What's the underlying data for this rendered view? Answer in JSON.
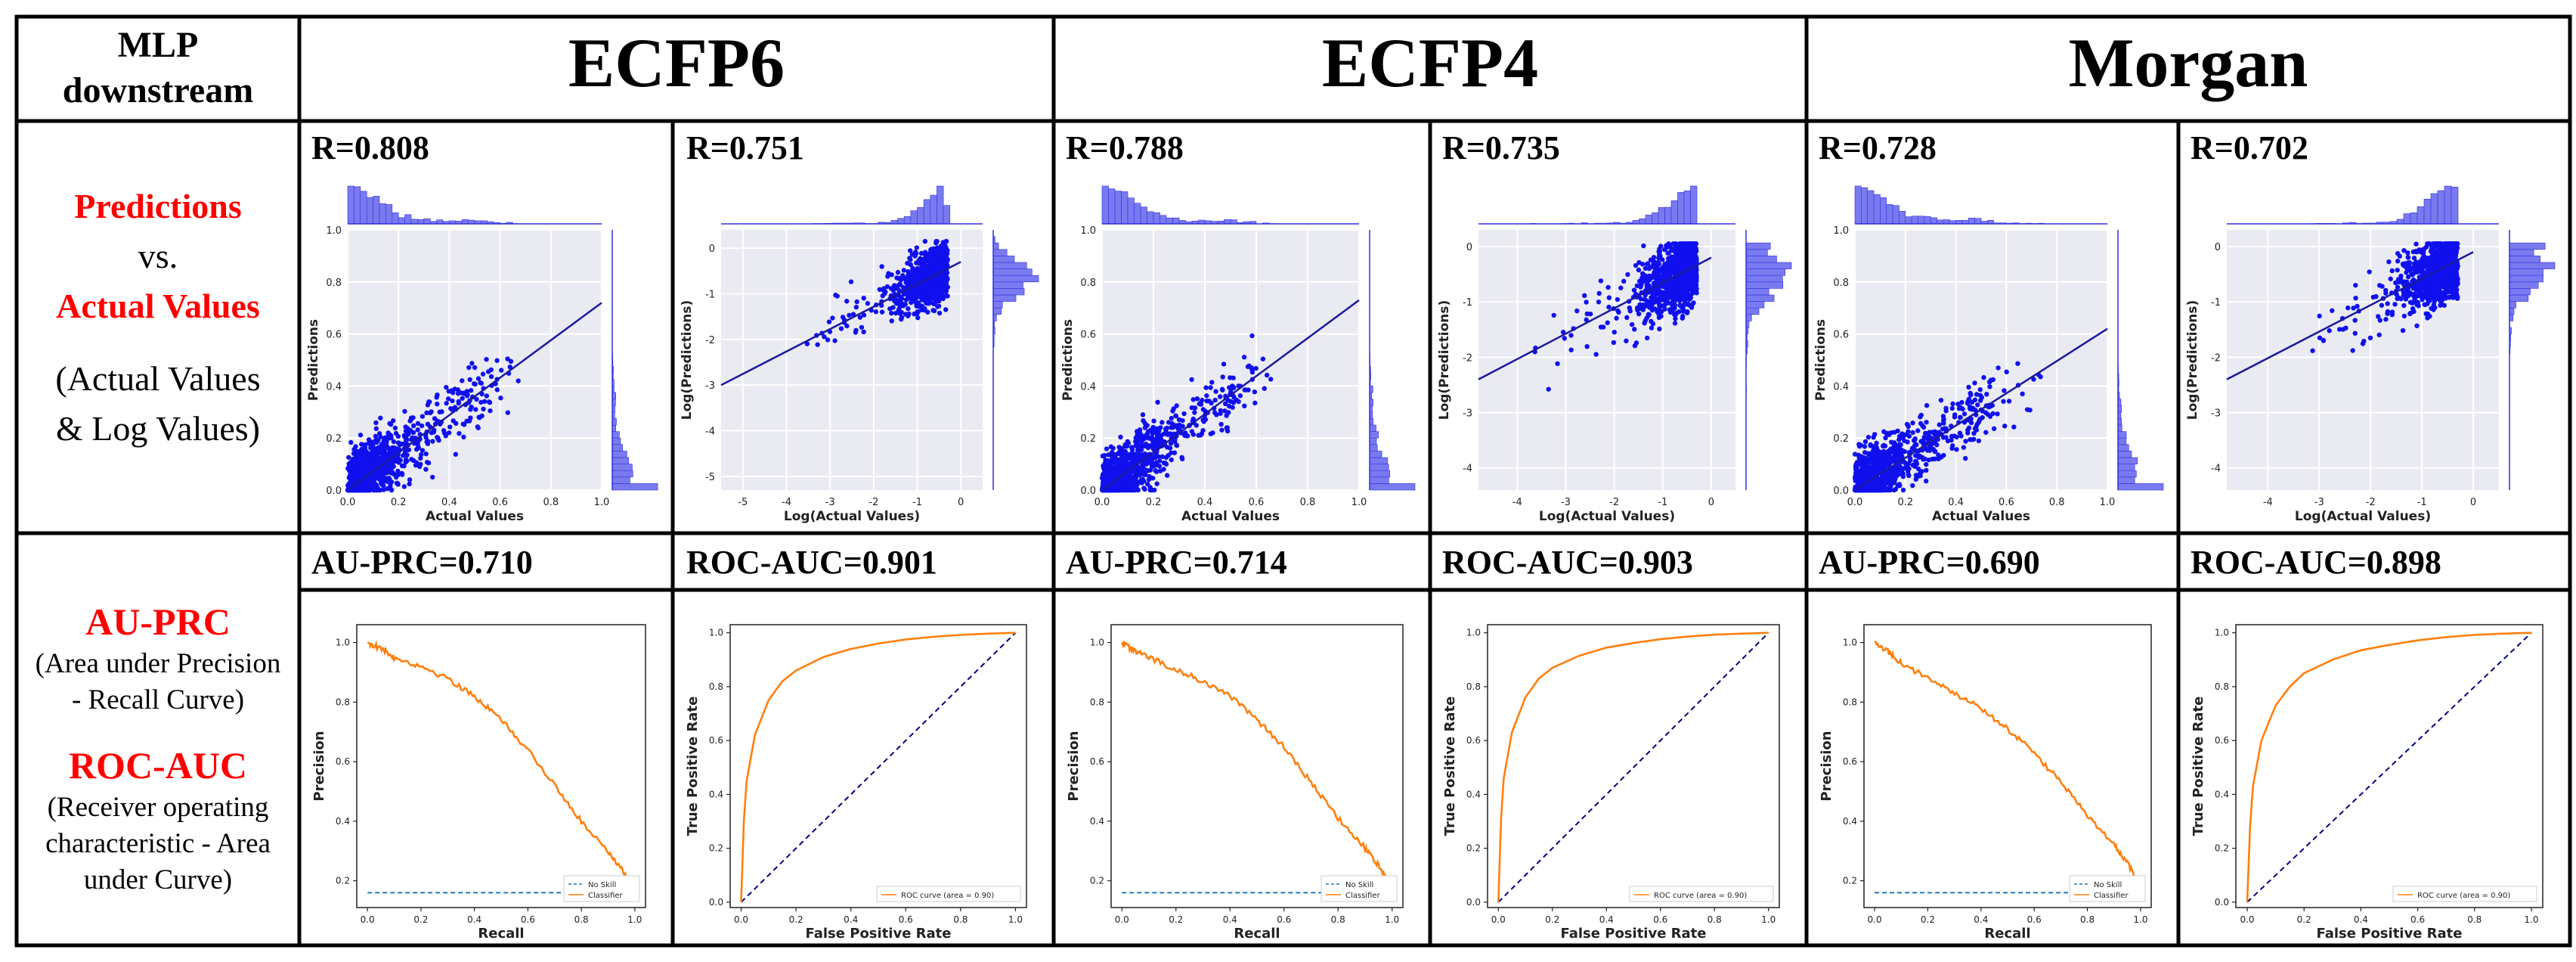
{
  "corner": {
    "line1": "MLP",
    "line2": "downstream"
  },
  "headers": [
    "ECFP6",
    "ECFP4",
    "Morgan"
  ],
  "row1_side": {
    "l1": "Predictions",
    "l2": "vs.",
    "l3": "Actual Values",
    "l4": "(Actual Values",
    "l5": "& Log Values)"
  },
  "row2_side": {
    "l1": "AU-PRC",
    "l2": "(Area under Precision",
    "l3": "- Recall Curve)",
    "l4": "ROC-AUC",
    "l5": "(Receiver operating",
    "l6": "characteristic - Area",
    "l7": "under Curve)"
  },
  "r_labels": [
    "R=0.808",
    "R=0.751",
    "R=0.788",
    "R=0.735",
    "R=0.728",
    "R=0.702"
  ],
  "metric_labels": [
    "AU-PRC=0.710",
    "ROC-AUC=0.901",
    "AU-PRC=0.714",
    "ROC-AUC=0.903",
    "AU-PRC=0.690",
    "ROC-AUC=0.898"
  ],
  "colors": {
    "scatter": "#1010ee",
    "pr": "#ff7f0e",
    "noskill": "#1f77b4",
    "diag": "#000080",
    "plotbg": "#eaeaf2"
  },
  "chart_data": [
    {
      "type": "scatter",
      "panel": "ECFP6-linear",
      "xlabel": "Actual Values",
      "ylabel": "Predictions",
      "xlim": [
        0,
        1
      ],
      "ylim": [
        0,
        1
      ],
      "xticks": [
        "0.0",
        "0.2",
        "0.4",
        "0.6",
        "0.8",
        "1.0"
      ],
      "yticks": [
        "0.0",
        "0.2",
        "0.4",
        "0.6",
        "0.8",
        "1.0"
      ],
      "fit": [
        [
          0,
          0.0
        ],
        [
          1,
          0.72
        ]
      ],
      "marginals": true,
      "grid": true
    },
    {
      "type": "scatter",
      "panel": "ECFP6-log",
      "xlabel": "Log(Actual Values)",
      "ylabel": "Log(Predictions)",
      "xlim": [
        -5.5,
        0.5
      ],
      "ylim": [
        -5.3,
        0.4
      ],
      "xticks": [
        "-5",
        "-4",
        "-3",
        "-2",
        "-1",
        "0"
      ],
      "yticks": [
        "-5",
        "-4",
        "-3",
        "-2",
        "-1",
        "0"
      ],
      "fit": [
        [
          -5.5,
          -3.0
        ],
        [
          0,
          -0.3
        ]
      ],
      "marginals": true,
      "grid": true
    },
    {
      "type": "scatter",
      "panel": "ECFP4-linear",
      "xlabel": "Actual Values",
      "ylabel": "Predictions",
      "xlim": [
        0,
        1
      ],
      "ylim": [
        0,
        1
      ],
      "xticks": [
        "0.0",
        "0.2",
        "0.4",
        "0.6",
        "0.8",
        "1.0"
      ],
      "yticks": [
        "0.0",
        "0.2",
        "0.4",
        "0.6",
        "0.8",
        "1.0"
      ],
      "fit": [
        [
          0,
          0.0
        ],
        [
          1,
          0.73
        ]
      ],
      "marginals": true,
      "grid": true
    },
    {
      "type": "scatter",
      "panel": "ECFP4-log",
      "xlabel": "Log(Actual Values)",
      "ylabel": "Log(Predictions)",
      "xlim": [
        -4.8,
        0.5
      ],
      "ylim": [
        -4.4,
        0.3
      ],
      "xticks": [
        "-4",
        "-3",
        "-2",
        "-1",
        "0"
      ],
      "yticks": [
        "-4",
        "-3",
        "-2",
        "-1",
        "0"
      ],
      "fit": [
        [
          -4.8,
          -2.4
        ],
        [
          0,
          -0.2
        ]
      ],
      "marginals": true,
      "grid": true
    },
    {
      "type": "scatter",
      "panel": "Morgan-linear",
      "xlabel": "Actual Values",
      "ylabel": "Predictions",
      "xlim": [
        0,
        1
      ],
      "ylim": [
        0,
        1
      ],
      "xticks": [
        "0.0",
        "0.2",
        "0.4",
        "0.6",
        "0.8",
        "1.0"
      ],
      "yticks": [
        "0.0",
        "0.2",
        "0.4",
        "0.6",
        "0.8",
        "1.0"
      ],
      "fit": [
        [
          0,
          0.0
        ],
        [
          1,
          0.62
        ]
      ],
      "marginals": true,
      "grid": true
    },
    {
      "type": "scatter",
      "panel": "Morgan-log",
      "xlabel": "Log(Actual Values)",
      "ylabel": "Log(Predictions)",
      "xlim": [
        -4.8,
        0.5
      ],
      "ylim": [
        -4.4,
        0.3
      ],
      "xticks": [
        "-4",
        "-3",
        "-2",
        "-1",
        "0"
      ],
      "yticks": [
        "-4",
        "-3",
        "-2",
        "-1",
        "0"
      ],
      "fit": [
        [
          -4.8,
          -2.4
        ],
        [
          0,
          -0.1
        ]
      ],
      "marginals": true,
      "grid": true
    },
    {
      "type": "line",
      "panel": "ECFP6-PR",
      "xlabel": "Recall",
      "ylabel": "Precision",
      "xlim": [
        0,
        1
      ],
      "ylim": [
        0.13,
        1.03
      ],
      "xticks": [
        "0.0",
        "0.2",
        "0.4",
        "0.6",
        "0.8",
        "1.0"
      ],
      "yticks": [
        "0.2",
        "0.4",
        "0.6",
        "0.8",
        "1.0"
      ],
      "legend": [
        "No Skill",
        "Classifier"
      ],
      "legend_position": "bottom-right",
      "series": [
        {
          "name": "Classifier",
          "x": [
            0,
            0.05,
            0.1,
            0.2,
            0.3,
            0.4,
            0.5,
            0.6,
            0.7,
            0.8,
            0.9,
            0.95,
            1.0
          ],
          "y": [
            1.0,
            0.98,
            0.95,
            0.92,
            0.88,
            0.82,
            0.74,
            0.64,
            0.52,
            0.4,
            0.3,
            0.24,
            0.17
          ]
        },
        {
          "name": "No Skill",
          "x": [
            0,
            1
          ],
          "y": [
            0.16,
            0.16
          ]
        }
      ]
    },
    {
      "type": "line",
      "panel": "ECFP6-ROC",
      "xlabel": "False Positive Rate",
      "ylabel": "True Positive Rate",
      "xlim": [
        0,
        1
      ],
      "ylim": [
        0,
        1
      ],
      "xticks": [
        "0.0",
        "0.2",
        "0.4",
        "0.6",
        "0.8",
        "1.0"
      ],
      "yticks": [
        "0.0",
        "0.2",
        "0.4",
        "0.6",
        "0.8",
        "1.0"
      ],
      "legend": [
        "ROC curve (area = 0.90)"
      ],
      "legend_position": "bottom-right",
      "series": [
        {
          "name": "ROC curve (area = 0.90)",
          "x": [
            0,
            0.01,
            0.02,
            0.05,
            0.1,
            0.15,
            0.2,
            0.3,
            0.4,
            0.5,
            0.6,
            0.7,
            0.8,
            0.9,
            1.0
          ],
          "y": [
            0,
            0.3,
            0.45,
            0.62,
            0.75,
            0.82,
            0.86,
            0.91,
            0.94,
            0.96,
            0.975,
            0.985,
            0.992,
            0.997,
            1.0
          ]
        }
      ]
    },
    {
      "type": "line",
      "panel": "ECFP4-PR",
      "xlabel": "Recall",
      "ylabel": "Precision",
      "xlim": [
        0,
        1
      ],
      "ylim": [
        0.13,
        1.03
      ],
      "xticks": [
        "0.0",
        "0.2",
        "0.4",
        "0.6",
        "0.8",
        "1.0"
      ],
      "yticks": [
        "0.2",
        "0.4",
        "0.6",
        "0.8",
        "1.0"
      ],
      "legend": [
        "No Skill",
        "Classifier"
      ],
      "legend_position": "bottom-right",
      "series": [
        {
          "name": "Classifier",
          "x": [
            0,
            0.05,
            0.1,
            0.2,
            0.3,
            0.4,
            0.5,
            0.6,
            0.7,
            0.8,
            0.9,
            0.95,
            1.0
          ],
          "y": [
            1.0,
            0.97,
            0.95,
            0.91,
            0.87,
            0.82,
            0.74,
            0.65,
            0.53,
            0.41,
            0.31,
            0.25,
            0.17
          ]
        },
        {
          "name": "No Skill",
          "x": [
            0,
            1
          ],
          "y": [
            0.16,
            0.16
          ]
        }
      ]
    },
    {
      "type": "line",
      "panel": "ECFP4-ROC",
      "xlabel": "False Positive Rate",
      "ylabel": "True Positive Rate",
      "xlim": [
        0,
        1
      ],
      "ylim": [
        0,
        1
      ],
      "xticks": [
        "0.0",
        "0.2",
        "0.4",
        "0.6",
        "0.8",
        "1.0"
      ],
      "yticks": [
        "0.0",
        "0.2",
        "0.4",
        "0.6",
        "0.8",
        "1.0"
      ],
      "legend": [
        "ROC curve (area = 0.90)"
      ],
      "legend_position": "bottom-right",
      "series": [
        {
          "name": "ROC curve (area = 0.90)",
          "x": [
            0,
            0.01,
            0.02,
            0.05,
            0.1,
            0.15,
            0.2,
            0.3,
            0.4,
            0.5,
            0.6,
            0.7,
            0.8,
            0.9,
            1.0
          ],
          "y": [
            0,
            0.31,
            0.46,
            0.63,
            0.76,
            0.83,
            0.87,
            0.915,
            0.945,
            0.962,
            0.976,
            0.986,
            0.993,
            0.997,
            1.0
          ]
        }
      ]
    },
    {
      "type": "line",
      "panel": "Morgan-PR",
      "xlabel": "Recall",
      "ylabel": "Precision",
      "xlim": [
        0,
        1
      ],
      "ylim": [
        0.13,
        1.03
      ],
      "xticks": [
        "0.0",
        "0.2",
        "0.4",
        "0.6",
        "0.8",
        "1.0"
      ],
      "yticks": [
        "0.2",
        "0.4",
        "0.6",
        "0.8",
        "1.0"
      ],
      "legend": [
        "No Skill",
        "Classifier"
      ],
      "legend_position": "bottom-right",
      "series": [
        {
          "name": "Classifier",
          "x": [
            0,
            0.05,
            0.1,
            0.2,
            0.3,
            0.4,
            0.5,
            0.6,
            0.7,
            0.8,
            0.9,
            0.95,
            1.0
          ],
          "y": [
            1.0,
            0.97,
            0.93,
            0.88,
            0.83,
            0.78,
            0.71,
            0.63,
            0.53,
            0.42,
            0.32,
            0.26,
            0.18
          ]
        },
        {
          "name": "No Skill",
          "x": [
            0,
            1
          ],
          "y": [
            0.16,
            0.16
          ]
        }
      ]
    },
    {
      "type": "line",
      "panel": "Morgan-ROC",
      "xlabel": "False Positive Rate",
      "ylabel": "True Positive Rate",
      "xlim": [
        0,
        1
      ],
      "ylim": [
        0,
        1
      ],
      "xticks": [
        "0.0",
        "0.2",
        "0.4",
        "0.6",
        "0.8",
        "1.0"
      ],
      "yticks": [
        "0.0",
        "0.2",
        "0.4",
        "0.6",
        "0.8",
        "1.0"
      ],
      "legend": [
        "ROC curve (area = 0.90)"
      ],
      "legend_position": "bottom-right",
      "series": [
        {
          "name": "ROC curve (area = 0.90)",
          "x": [
            0,
            0.01,
            0.02,
            0.05,
            0.1,
            0.15,
            0.2,
            0.3,
            0.4,
            0.5,
            0.6,
            0.7,
            0.8,
            0.9,
            1.0
          ],
          "y": [
            0,
            0.28,
            0.43,
            0.6,
            0.73,
            0.8,
            0.85,
            0.9,
            0.935,
            0.955,
            0.972,
            0.984,
            0.992,
            0.997,
            1.0
          ]
        }
      ]
    }
  ]
}
